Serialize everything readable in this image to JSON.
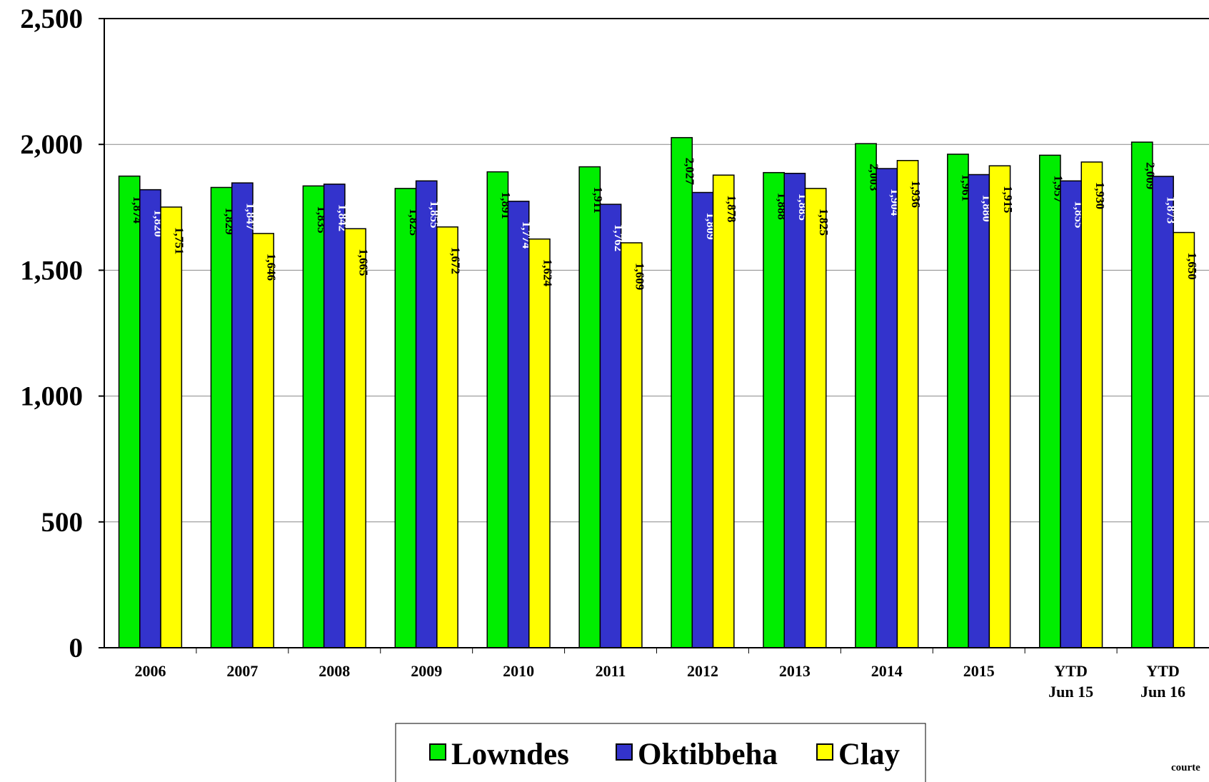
{
  "chart_data": {
    "type": "bar",
    "categories": [
      "2006",
      "2007",
      "2008",
      "2009",
      "2010",
      "2011",
      "2012",
      "2013",
      "2014",
      "2015",
      "YTD\nJun 15",
      "YTD\nJun 16"
    ],
    "series": [
      {
        "name": "Lowndes",
        "color": "#00ee00",
        "label_color": "#000000",
        "values": [
          1874,
          1829,
          1835,
          1825,
          1891,
          1911,
          2027,
          1888,
          2003,
          1961,
          1957,
          2009
        ],
        "value_labels": [
          "1,874",
          "1,829",
          "1,835",
          "1,825",
          "1,891",
          "1,911",
          "2,027",
          "1,888",
          "2,003",
          "1,961",
          "1,957",
          "2,009"
        ]
      },
      {
        "name": "Oktibbeha",
        "color": "#3333cc",
        "label_color": "#ffffff",
        "values": [
          1820,
          1847,
          1842,
          1855,
          1774,
          1762,
          1809,
          1885,
          1904,
          1880,
          1855,
          1873
        ],
        "value_labels": [
          "1,820",
          "1,847",
          "1,842",
          "1,855",
          "1,774",
          "1,762",
          "1,809",
          "1,885",
          "1,904",
          "1,880",
          "1,855",
          "1,873"
        ]
      },
      {
        "name": "Clay",
        "color": "#ffff00",
        "label_color": "#000000",
        "values": [
          1751,
          1646,
          1665,
          1672,
          1624,
          1609,
          1878,
          1825,
          1936,
          1915,
          1930,
          1650
        ],
        "value_labels": [
          "1,751",
          "1,646",
          "1,665",
          "1,672",
          "1,624",
          "1,609",
          "1,878",
          "1,825",
          "1,936",
          "1,915",
          "1,930",
          "1,650"
        ]
      }
    ],
    "ylim": [
      0,
      2500
    ],
    "yticks": [
      0,
      500,
      {
        "value": 1000,
        "label": "1,000"
      },
      {
        "value": 1500,
        "label": "1,500"
      },
      {
        "value": 2000,
        "label": "2,000"
      },
      {
        "value": 2500,
        "label": "2,500"
      }
    ],
    "grid": true,
    "legend": "bottom",
    "source_note": "courte"
  }
}
